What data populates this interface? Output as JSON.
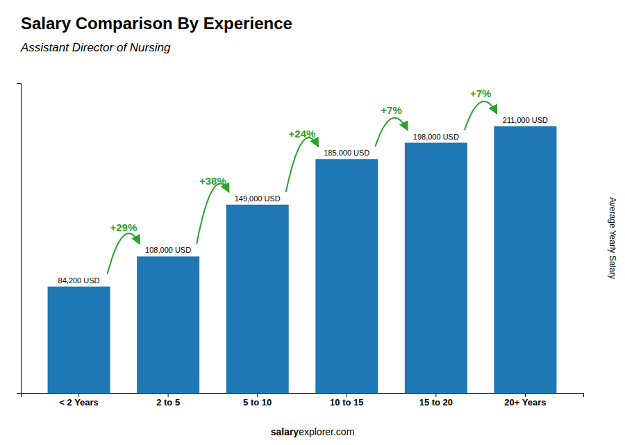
{
  "chart_data": {
    "type": "bar",
    "title": "Salary Comparison By Experience",
    "subtitle": "Assistant Director of Nursing",
    "y_label": "Average Yearly Salary",
    "categories": [
      "< 2 Years",
      "2 to 5",
      "5 to 10",
      "10 to 15",
      "15 to 20",
      "20+ Years"
    ],
    "values": [
      84200,
      108000,
      149000,
      185000,
      198000,
      211000
    ],
    "value_labels": [
      "84,200 USD",
      "108,000 USD",
      "149,000 USD",
      "185,000 USD",
      "198,000 USD",
      "211,000 USD"
    ],
    "data_labels": true,
    "annotations": [
      "+29%",
      "+38%",
      "+24%",
      "+7%",
      "+7%"
    ],
    "footer": [
      "salary",
      "explorer.com"
    ],
    "ylim": [
      0,
      245000
    ],
    "tick_labels": "x",
    "grid": false
  }
}
